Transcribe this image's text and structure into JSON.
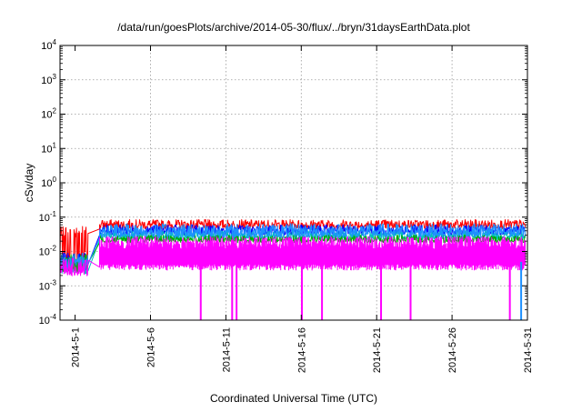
{
  "chart_data": {
    "type": "line",
    "title": "/data/run/goesPlots/archive/2014-05-30/flux/../bryn/31daysEarthData.plot",
    "xlabel": "Coordinated Universal Time (UTC)",
    "ylabel": "cSv/day",
    "y_scale": "log",
    "ylim": [
      0.0001,
      10000
    ],
    "xlim": [
      "2014-04-30",
      "2014-05-31"
    ],
    "grid": true,
    "legend": "none",
    "x_ticks": [
      "2014-5-1",
      "2014-5-6",
      "2014-5-11",
      "2014-5-16",
      "2014-5-21",
      "2014-5-26",
      "2014-5-31"
    ],
    "y_ticks": [
      {
        "base": "10",
        "exp": "-4",
        "value": 0.0001
      },
      {
        "base": "10",
        "exp": "-3",
        "value": 0.001
      },
      {
        "base": "10",
        "exp": "-2",
        "value": 0.01
      },
      {
        "base": "10",
        "exp": "-1",
        "value": 0.1
      },
      {
        "base": "10",
        "exp": "0",
        "value": 1
      },
      {
        "base": "10",
        "exp": "1",
        "value": 10
      },
      {
        "base": "10",
        "exp": "2",
        "value": 100
      },
      {
        "base": "10",
        "exp": "3",
        "value": 1000
      },
      {
        "base": "10",
        "exp": "4",
        "value": 10000
      }
    ],
    "data_gap": [
      "2014-05-01T21:00",
      "2014-05-02T15:00"
    ],
    "series": [
      {
        "color": "#ff0000",
        "band": [
          0.045,
          0.085
        ],
        "start": 0.006,
        "x_start": "2014-04-30"
      },
      {
        "color": "#0000ff",
        "band": [
          0.03,
          0.06
        ],
        "start": 0.005,
        "x_start": "2014-04-30"
      },
      {
        "color": "#00c0c0",
        "band": [
          0.022,
          0.04
        ],
        "start": 0.004,
        "x_start": "2014-04-30"
      },
      {
        "color": "#00aa00",
        "band": [
          0.018,
          0.03
        ],
        "start": 0.0045,
        "x_start": "2014-04-30"
      },
      {
        "color": "#1e90ff",
        "band": [
          0.025,
          0.065
        ],
        "start": 0.005,
        "x_start": "2014-04-30"
      },
      {
        "color": "#ff00ff",
        "band": [
          0.0035,
          0.02
        ],
        "start": 0.0035,
        "x_start": "2014-04-30"
      }
    ],
    "dips": [
      {
        "date": "2014-05-09T08:00",
        "value": 0.0001,
        "color": "#ff00ff"
      },
      {
        "date": "2014-05-11T10:00",
        "value": 0.0001,
        "color": "#ff00ff"
      },
      {
        "date": "2014-05-11T17:00",
        "value": 0.0001,
        "color": "#ff00ff"
      },
      {
        "date": "2014-05-16T01:00",
        "value": 0.0001,
        "color": "#ff00ff"
      },
      {
        "date": "2014-05-17T09:00",
        "value": 0.0001,
        "color": "#ff00ff"
      },
      {
        "date": "2014-05-21T07:00",
        "value": 0.0001,
        "color": "#ff00ff"
      },
      {
        "date": "2014-05-23T06:00",
        "value": 0.0001,
        "color": "#ff00ff"
      },
      {
        "date": "2014-05-29T20:00",
        "value": 0.0001,
        "color": "#ff00ff"
      },
      {
        "date": "2014-05-30T14:00",
        "value": 0.0001,
        "color": "#1e90ff"
      }
    ]
  }
}
